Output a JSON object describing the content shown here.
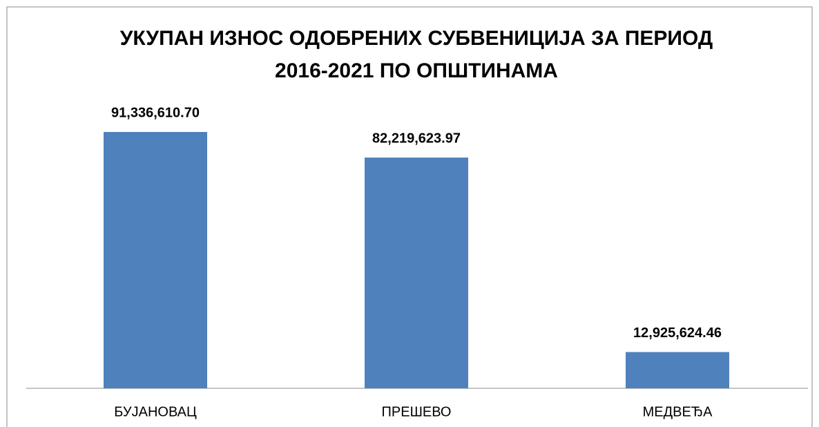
{
  "chart_data": {
    "type": "bar",
    "title": [
      "УКУПАН ИЗНОС ОДОБРЕНИХ СУБВЕНИЦИЈА ЗА ПЕРИОД",
      "2016-2021 ПО ОПШТИНАМА"
    ],
    "categories": [
      "БУЈАНОВАЦ",
      "ПРЕШЕВО",
      "МЕДВЕЂА"
    ],
    "values": [
      91336610.7,
      82219623.97,
      12925624.46
    ],
    "value_labels": [
      "91,336,610.70",
      "82,219,623.97",
      "12,925,624.46"
    ],
    "color": "#4f81bd"
  }
}
